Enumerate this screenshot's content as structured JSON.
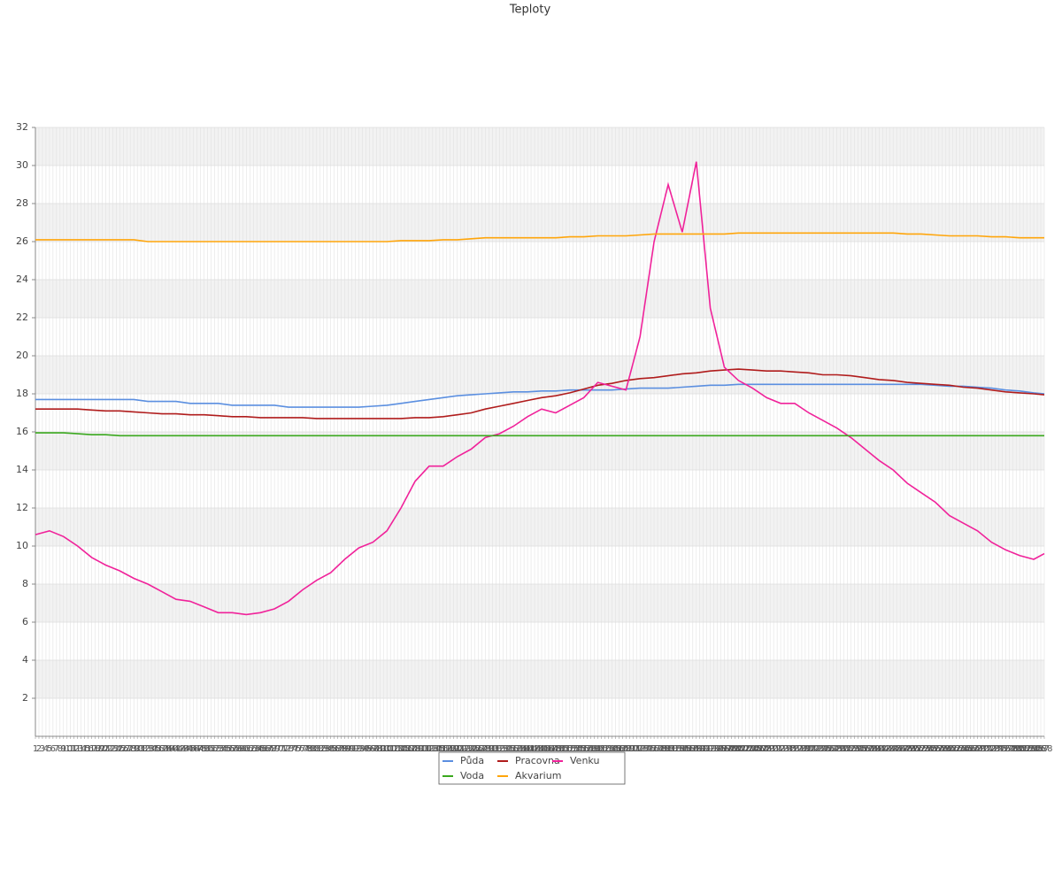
{
  "chart_data": {
    "type": "line",
    "title": "Teploty",
    "x": [
      1,
      5,
      9,
      13,
      17,
      21,
      25,
      29,
      33,
      37,
      41,
      45,
      49,
      53,
      57,
      61,
      65,
      69,
      73,
      77,
      81,
      85,
      89,
      93,
      97,
      101,
      105,
      109,
      113,
      117,
      121,
      125,
      129,
      133,
      137,
      141,
      145,
      149,
      153,
      157,
      161,
      165,
      169,
      173,
      177,
      181,
      185,
      189,
      193,
      197,
      201,
      205,
      209,
      213,
      217,
      221,
      225,
      229,
      233,
      237,
      241,
      245,
      249,
      253,
      257,
      261,
      265,
      269,
      273,
      277,
      281,
      285,
      288
    ],
    "xlim": [
      1,
      288
    ],
    "xticks": [
      1,
      2,
      3,
      4,
      5,
      6,
      7,
      8,
      9,
      10,
      11,
      12,
      13,
      14,
      15,
      16,
      17,
      18,
      19,
      20,
      21,
      22,
      23,
      24,
      25,
      26,
      27,
      28,
      29,
      30,
      31,
      32,
      33,
      34,
      35,
      36,
      37,
      38,
      39,
      40,
      41,
      42,
      43,
      44,
      45,
      46,
      47,
      48,
      49,
      50,
      51,
      52,
      53,
      54,
      55,
      56,
      57,
      58,
      59,
      60,
      61,
      62,
      63,
      64,
      65,
      66,
      67,
      68,
      69,
      70,
      71,
      72,
      73,
      74,
      75,
      76,
      77,
      78,
      79,
      80,
      81,
      82,
      83,
      84,
      85,
      86,
      87,
      88,
      89,
      90,
      91,
      92,
      93,
      94,
      95,
      96,
      97,
      98,
      99,
      100,
      101,
      102,
      103,
      104,
      105,
      106,
      107,
      108,
      109,
      110,
      111,
      112,
      113,
      114,
      115,
      116,
      117,
      118,
      119,
      120,
      121,
      122,
      123,
      124,
      125,
      126,
      127,
      128,
      129,
      130,
      131,
      132,
      133,
      134,
      135,
      136,
      137,
      138,
      139,
      140,
      141,
      142,
      143,
      144,
      145,
      146,
      147,
      148,
      149,
      150,
      151,
      152,
      153,
      154,
      155,
      156,
      157,
      158,
      159,
      160,
      161,
      162,
      163,
      164,
      165,
      166,
      167,
      168,
      169,
      170,
      171,
      172,
      173,
      174,
      175,
      176,
      177,
      178,
      179,
      180,
      181,
      182,
      183,
      184,
      185,
      186,
      187,
      188,
      189,
      190,
      191,
      192,
      193,
      194,
      195,
      196,
      197,
      198,
      199,
      200,
      201,
      202,
      203,
      204,
      205,
      206,
      207,
      208,
      209,
      210,
      211,
      212,
      213,
      214,
      215,
      216,
      217,
      218,
      219,
      220,
      221,
      222,
      223,
      224,
      225,
      226,
      227,
      228,
      229,
      230,
      231,
      232,
      233,
      234,
      235,
      236,
      237,
      238,
      239,
      240,
      241,
      242,
      243,
      244,
      245,
      246,
      247,
      248,
      249,
      250,
      251,
      252,
      253,
      254,
      255,
      256,
      257,
      258,
      259,
      260,
      261,
      262,
      263,
      264,
      265,
      266,
      267,
      268,
      269,
      270,
      271,
      272,
      273,
      274,
      275,
      276,
      277,
      278,
      279,
      280,
      281,
      282,
      283,
      284,
      285,
      286,
      287,
      288
    ],
    "ylim": [
      0,
      32
    ],
    "yticks": [
      2,
      4,
      6,
      8,
      10,
      12,
      14,
      16,
      18,
      20,
      22,
      24,
      26,
      28,
      30,
      32
    ],
    "grid": true,
    "series": [
      {
        "name": "Půda",
        "color": "#5b8fe0",
        "values": [
          17.7,
          17.7,
          17.7,
          17.7,
          17.7,
          17.7,
          17.7,
          17.7,
          17.6,
          17.6,
          17.6,
          17.5,
          17.5,
          17.5,
          17.4,
          17.4,
          17.4,
          17.4,
          17.3,
          17.3,
          17.3,
          17.3,
          17.3,
          17.3,
          17.35,
          17.4,
          17.5,
          17.6,
          17.7,
          17.8,
          17.9,
          17.95,
          18.0,
          18.05,
          18.1,
          18.1,
          18.15,
          18.15,
          18.2,
          18.2,
          18.2,
          18.2,
          18.25,
          18.3,
          18.3,
          18.3,
          18.35,
          18.4,
          18.45,
          18.45,
          18.5,
          18.5,
          18.5,
          18.5,
          18.5,
          18.5,
          18.5,
          18.5,
          18.5,
          18.5,
          18.5,
          18.5,
          18.5,
          18.5,
          18.45,
          18.4,
          18.4,
          18.35,
          18.3,
          18.2,
          18.15,
          18.05,
          18.0
        ]
      },
      {
        "name": "Pracovna",
        "color": "#b01c1c",
        "values": [
          17.2,
          17.2,
          17.2,
          17.2,
          17.15,
          17.1,
          17.1,
          17.05,
          17.0,
          16.95,
          16.95,
          16.9,
          16.9,
          16.85,
          16.8,
          16.8,
          16.75,
          16.75,
          16.75,
          16.75,
          16.7,
          16.7,
          16.7,
          16.7,
          16.7,
          16.7,
          16.7,
          16.75,
          16.75,
          16.8,
          16.9,
          17.0,
          17.2,
          17.35,
          17.5,
          17.65,
          17.8,
          17.9,
          18.05,
          18.25,
          18.45,
          18.55,
          18.7,
          18.8,
          18.85,
          18.95,
          19.05,
          19.1,
          19.2,
          19.25,
          19.3,
          19.25,
          19.2,
          19.2,
          19.15,
          19.1,
          19.0,
          19.0,
          18.95,
          18.85,
          18.75,
          18.7,
          18.6,
          18.55,
          18.5,
          18.45,
          18.35,
          18.3,
          18.2,
          18.1,
          18.05,
          18.0,
          17.95
        ]
      },
      {
        "name": "Venku",
        "color": "#f0229a",
        "values": [
          10.6,
          10.8,
          10.5,
          10.0,
          9.4,
          9.0,
          8.7,
          8.3,
          8.0,
          7.6,
          7.2,
          7.1,
          6.8,
          6.5,
          6.5,
          6.4,
          6.5,
          6.7,
          7.1,
          7.7,
          8.2,
          8.6,
          9.3,
          9.9,
          10.2,
          10.8,
          12.0,
          13.4,
          14.2,
          14.2,
          14.7,
          15.1,
          15.7,
          15.9,
          16.3,
          16.8,
          17.2,
          17.0,
          17.4,
          17.8,
          18.6,
          18.4,
          18.2,
          21.0,
          26.0,
          29.0,
          26.5,
          30.2,
          22.5,
          19.4,
          18.7,
          18.3,
          17.8,
          17.5,
          17.5,
          17.0,
          16.6,
          16.2,
          15.7,
          15.1,
          14.5,
          14.0,
          13.3,
          12.8,
          12.3,
          11.6,
          11.2,
          10.8,
          10.2,
          9.8,
          9.5,
          9.3,
          9.6
        ]
      },
      {
        "name": "Voda",
        "color": "#3aa81e",
        "values": [
          15.95,
          15.95,
          15.95,
          15.9,
          15.85,
          15.85,
          15.8,
          15.8,
          15.8,
          15.8,
          15.8,
          15.8,
          15.8,
          15.8,
          15.8,
          15.8,
          15.8,
          15.8,
          15.8,
          15.8,
          15.8,
          15.8,
          15.8,
          15.8,
          15.8,
          15.8,
          15.8,
          15.8,
          15.8,
          15.8,
          15.8,
          15.8,
          15.8,
          15.8,
          15.8,
          15.8,
          15.8,
          15.8,
          15.8,
          15.8,
          15.8,
          15.8,
          15.8,
          15.8,
          15.8,
          15.8,
          15.8,
          15.8,
          15.8,
          15.8,
          15.8,
          15.8,
          15.8,
          15.8,
          15.8,
          15.8,
          15.8,
          15.8,
          15.8,
          15.8,
          15.8,
          15.8,
          15.8,
          15.8,
          15.8,
          15.8,
          15.8,
          15.8,
          15.8,
          15.8,
          15.8,
          15.8,
          15.8
        ]
      },
      {
        "name": "Akvarium",
        "color": "#ffa50a",
        "values": [
          26.1,
          26.1,
          26.1,
          26.1,
          26.1,
          26.1,
          26.1,
          26.1,
          26.0,
          26.0,
          26.0,
          26.0,
          26.0,
          26.0,
          26.0,
          26.0,
          26.0,
          26.0,
          26.0,
          26.0,
          26.0,
          26.0,
          26.0,
          26.0,
          26.0,
          26.0,
          26.05,
          26.05,
          26.05,
          26.1,
          26.1,
          26.15,
          26.2,
          26.2,
          26.2,
          26.2,
          26.2,
          26.2,
          26.25,
          26.25,
          26.3,
          26.3,
          26.3,
          26.35,
          26.4,
          26.4,
          26.4,
          26.4,
          26.4,
          26.4,
          26.45,
          26.45,
          26.45,
          26.45,
          26.45,
          26.45,
          26.45,
          26.45,
          26.45,
          26.45,
          26.45,
          26.45,
          26.4,
          26.4,
          26.35,
          26.3,
          26.3,
          26.3,
          26.25,
          26.25,
          26.2,
          26.2,
          26.2
        ]
      }
    ]
  }
}
